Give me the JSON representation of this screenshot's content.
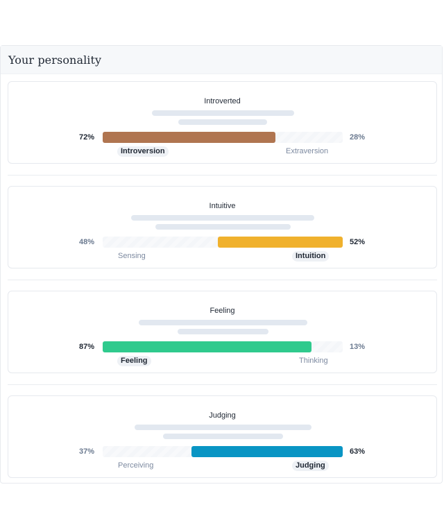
{
  "panel": {
    "title": "Your personality"
  },
  "traits": [
    {
      "title": "Introverted",
      "left_label": "Introversion",
      "right_label": "Extraversion",
      "left_pct": "72%",
      "right_pct": "28%",
      "dominant": "left",
      "fill_fraction": 0.72,
      "color": "#b07550"
    },
    {
      "title": "Intuitive",
      "left_label": "Sensing",
      "right_label": "Intuition",
      "left_pct": "48%",
      "right_pct": "52%",
      "dominant": "right",
      "fill_fraction": 0.52,
      "color": "#f0b12d"
    },
    {
      "title": "Feeling",
      "left_label": "Feeling",
      "right_label": "Thinking",
      "left_pct": "87%",
      "right_pct": "13%",
      "dominant": "left",
      "fill_fraction": 0.87,
      "color": "#2fca8d"
    },
    {
      "title": "Judging",
      "left_label": "Perceiving",
      "right_label": "Judging",
      "left_pct": "37%",
      "right_pct": "63%",
      "dominant": "right",
      "fill_fraction": 0.63,
      "color": "#0995c4"
    }
  ]
}
